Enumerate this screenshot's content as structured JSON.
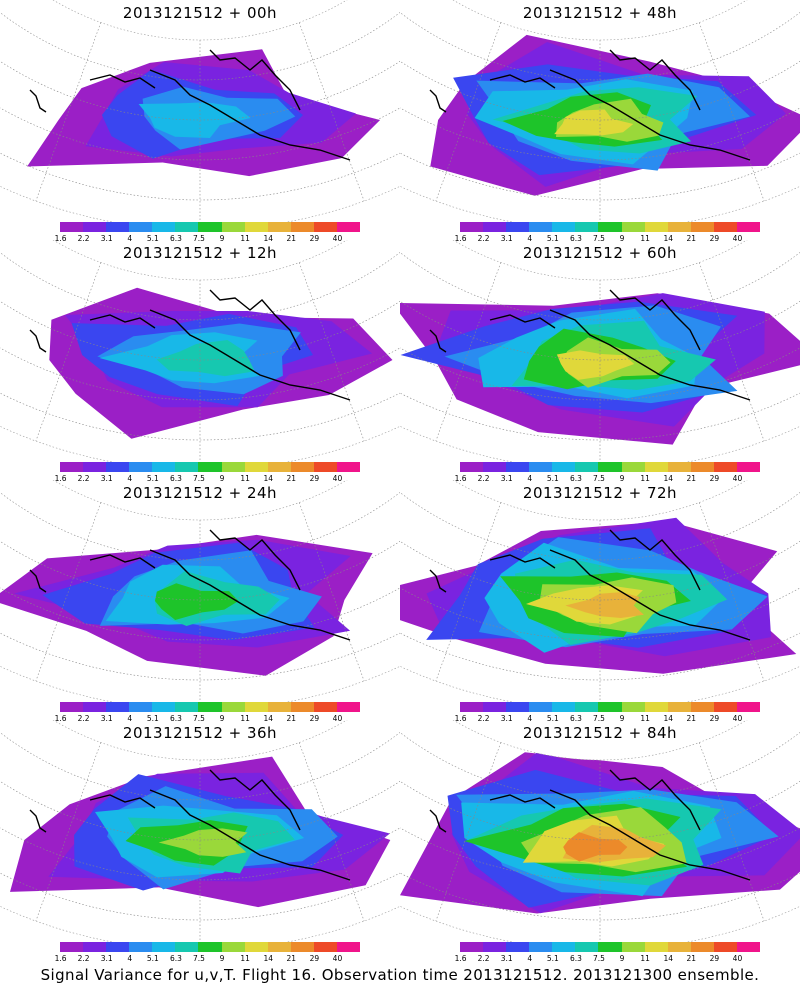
{
  "caption": "Signal Variance for u,v,T. Flight 16. Observation time 2013121512. 2013121300 ensemble.",
  "colorbar": {
    "colors": [
      "#9b1fc6",
      "#7a23e0",
      "#3a46f0",
      "#2a8cf0",
      "#18b8e8",
      "#16c8b0",
      "#1ec42a",
      "#9ad83a",
      "#e0d83a",
      "#e8b23a",
      "#ec8a2a",
      "#ee4a28",
      "#f0148a"
    ],
    "labels": [
      "1.6",
      "2.2",
      "3.1",
      "4",
      "5.1",
      "6.3",
      "7.5",
      "9",
      "11",
      "14",
      "21",
      "29",
      "40"
    ]
  },
  "panels": [
    {
      "title": "2013121512 + 00h",
      "level": 0.18
    },
    {
      "title": "2013121512 + 48h",
      "level": 0.62
    },
    {
      "title": "2013121512 + 12h",
      "level": 0.36
    },
    {
      "title": "2013121512 + 60h",
      "level": 0.72
    },
    {
      "title": "2013121512 + 24h",
      "level": 0.45
    },
    {
      "title": "2013121512 + 72h",
      "level": 0.8
    },
    {
      "title": "2013121512 + 36h",
      "level": 0.55
    },
    {
      "title": "2013121512 + 84h",
      "level": 0.88
    }
  ]
}
